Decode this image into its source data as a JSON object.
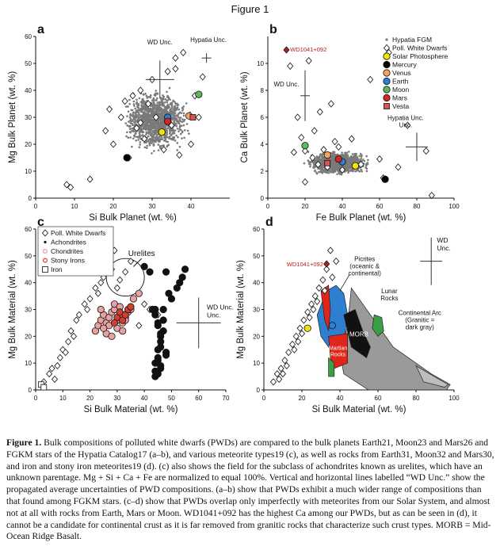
{
  "figure": {
    "title": "Figure 1",
    "caption_label": "Figure 1.",
    "caption_text": "Bulk compositions of polluted white dwarfs (PWDs) are compared to the bulk planets Earth21, Moon23 and Mars26 and FGKM stars of the Hypatia Catalog17 (a–b), and various meteorite types19 (c), as well as rocks from Earth31, Moon32 and Mars30, and iron and stony iron meteorites19 (d). (c) also shows the field for the subclass of achondrites known as urelites, which have an unknown parentage. Mg + Si + Ca + Fe are normalized to equal 100%. Vertical and horizontal lines labelled “WD Unc.” show the propagated average uncertainties of PWD compositions. (a–b) show that PWDs exhibit a much wider range of compositions than that found among FGKM stars. (c–d) show that PWDs overlap only imperfectly with meteorites from our Solar System, and almost not at all with rocks from Earth, Mars or Moon. WD1041+092 has the highest Ca among our PWDs, but as can be seen in (d), it cannot be a candidate for continental crust as it is far removed from granitic rocks that characterize such crust types. MORB = Mid-Ocean Ridge Basalt."
  },
  "chart_data": [
    {
      "panel": "a",
      "type": "scatter",
      "xlabel": "Si Bulk Planet (wt. %)",
      "ylabel": "Mg Bulk Planet (wt. %)",
      "xlim": [
        0,
        50
      ],
      "ylim": [
        0,
        60
      ],
      "xticks": [
        0,
        10,
        20,
        30,
        40
      ],
      "yticks": [
        0,
        10,
        20,
        30,
        40,
        50,
        60
      ],
      "annotations": [
        "WD Unc.",
        "Hypatia Unc."
      ],
      "cloud": {
        "name": "Hypatia FGM",
        "center": [
          31,
          29
        ],
        "spread": [
          4.5,
          6
        ],
        "color": "#7a7a7a"
      },
      "series": [
        {
          "name": "Poll. White Dwarfs",
          "marker": "diamond",
          "x": [
            8,
            9,
            14,
            18,
            19,
            20,
            22,
            24,
            25,
            26,
            27,
            28,
            29,
            30,
            31,
            33,
            34,
            35,
            36,
            37,
            38,
            40,
            41,
            42,
            43,
            23,
            27,
            36
          ],
          "y": [
            5,
            4,
            7,
            25,
            33,
            20,
            30,
            15,
            38,
            26,
            40,
            22,
            35,
            44,
            30,
            18,
            47,
            27,
            52,
            16,
            54,
            20,
            38,
            30,
            45,
            36,
            28,
            48
          ]
        },
        {
          "name": "Solar Photosphere",
          "x": [
            32.5
          ],
          "y": [
            24.5
          ],
          "color": "#f2e20c"
        },
        {
          "name": "Mercury",
          "x": [
            23.5
          ],
          "y": [
            15
          ],
          "color": "#000000"
        },
        {
          "name": "Venus",
          "x": [
            39.5
          ],
          "y": [
            30.5
          ],
          "color": "#f4a460"
        },
        {
          "name": "Earth",
          "x": [
            34
          ],
          "y": [
            30
          ],
          "color": "#2f7fd1"
        },
        {
          "name": "Moon",
          "x": [
            42
          ],
          "y": [
            38.5
          ],
          "color": "#5cb85c"
        },
        {
          "name": "Mars",
          "x": [
            34
          ],
          "y": [
            28.5
          ],
          "color": "#d62728"
        },
        {
          "name": "Vesta",
          "x": [
            40.5
          ],
          "y": [
            30
          ],
          "color": "#d9534f",
          "marker": "square"
        }
      ]
    },
    {
      "panel": "b",
      "type": "scatter",
      "xlabel": "Fe Bulk Planet (wt. %)",
      "ylabel": "Ca Bulk Planet (wt. %)",
      "xlim": [
        0,
        100
      ],
      "ylim": [
        0,
        12
      ],
      "xticks": [
        0,
        20,
        40,
        60,
        80,
        100
      ],
      "yticks": [
        0,
        2,
        4,
        6,
        8,
        10
      ],
      "annotations": [
        "WD1041+092",
        "WD Unc.",
        "Hypatia Unc."
      ],
      "legend": [
        "Hypatia FGM",
        "Poll. White Dwarfs",
        "Solar Photosphere",
        "Mercury",
        "Venus",
        "Earth",
        "Moon",
        "Mars",
        "Vesta"
      ],
      "cloud": {
        "name": "Hypatia FGM",
        "center": [
          38,
          2.6
        ],
        "spread": [
          9,
          0.45
        ],
        "color": "#7a7a7a"
      },
      "series": [
        {
          "name": "Poll. White Dwarfs",
          "marker": "diamond",
          "x": [
            12,
            14,
            16,
            18,
            20,
            22,
            25,
            28,
            30,
            32,
            34,
            36,
            38,
            40,
            45,
            50,
            55,
            60,
            62,
            65,
            70,
            75,
            85,
            88,
            24,
            27,
            20
          ],
          "y": [
            9.8,
            3.4,
            6,
            4.5,
            3.5,
            10.2,
            5,
            6.4,
            3.6,
            2.3,
            7,
            4.2,
            3.8,
            2.1,
            4.4,
            2.5,
            8.8,
            2.9,
            1.5,
            10.8,
            2.3,
            5.4,
            3.5,
            0.2,
            3,
            2.5,
            1.2
          ]
        },
        {
          "name": "WD1041+092",
          "x": [
            10
          ],
          "y": [
            11
          ],
          "color": "#b22222",
          "marker": "diamond"
        },
        {
          "name": "Solar Photosphere",
          "x": [
            47
          ],
          "y": [
            2.4
          ],
          "color": "#f2e20c"
        },
        {
          "name": "Mercury",
          "x": [
            63
          ],
          "y": [
            1.4
          ],
          "color": "#000000"
        },
        {
          "name": "Venus",
          "x": [
            32
          ],
          "y": [
            3.2
          ],
          "color": "#f4a460"
        },
        {
          "name": "Earth",
          "x": [
            40
          ],
          "y": [
            2.7
          ],
          "color": "#2f7fd1"
        },
        {
          "name": "Moon",
          "x": [
            20
          ],
          "y": [
            3.9
          ],
          "color": "#5cb85c"
        },
        {
          "name": "Mars",
          "x": [
            38
          ],
          "y": [
            2.9
          ],
          "color": "#d62728"
        },
        {
          "name": "Vesta",
          "x": [
            32
          ],
          "y": [
            2.6
          ],
          "color": "#d9534f",
          "marker": "square"
        }
      ]
    },
    {
      "panel": "c",
      "type": "scatter",
      "xlabel": "Si Bulk Material (wt. %)",
      "ylabel": "Mg Bulk Material (wt. %)",
      "xlim": [
        0,
        70
      ],
      "ylim": [
        0,
        60
      ],
      "xticks": [
        0,
        10,
        20,
        30,
        40,
        50,
        60,
        70
      ],
      "yticks": [
        0,
        10,
        20,
        30,
        40,
        50,
        60
      ],
      "annotations": [
        "Urelites",
        "WD Unc."
      ],
      "legend": [
        "Poll. White Dwarfs",
        "Achondrites",
        "Chondrites",
        "Stony Irons",
        "Iron"
      ],
      "series": [
        {
          "name": "Poll. White Dwarfs",
          "marker": "diamond",
          "x": [
            3,
            5,
            7,
            8,
            9,
            10,
            12,
            13,
            15,
            16,
            18,
            20,
            22,
            24,
            25,
            26,
            27,
            28,
            29,
            30,
            31,
            33,
            35,
            38,
            40,
            42,
            45,
            6,
            11,
            14,
            19,
            23
          ],
          "y": [
            3,
            6,
            4,
            9,
            12,
            15,
            18,
            22,
            26,
            28,
            32,
            34,
            38,
            40,
            42,
            46,
            50,
            45,
            52,
            38,
            41,
            44,
            48,
            24,
            32,
            30,
            28,
            8,
            14,
            20,
            30,
            36
          ]
        },
        {
          "name": "Achondrites",
          "color": "#111111",
          "x": [
            44,
            45,
            45,
            46,
            46,
            47,
            45,
            44,
            47,
            46,
            45,
            44,
            48,
            46,
            45,
            47,
            44,
            46,
            45,
            48,
            50,
            52,
            54,
            55,
            53,
            49,
            48,
            43,
            42,
            40,
            44,
            46
          ],
          "y": [
            10,
            12,
            15,
            18,
            20,
            22,
            25,
            28,
            30,
            8,
            6,
            5,
            14,
            16,
            24,
            26,
            30,
            9,
            11,
            13,
            34,
            38,
            42,
            45,
            40,
            36,
            44,
            30,
            44,
            46,
            7,
            21
          ]
        },
        {
          "name": "Chondrites",
          "color": "#e8a0a0",
          "x": [
            22,
            23,
            24,
            25,
            26,
            27,
            28,
            29,
            30,
            31,
            32,
            33,
            34,
            35,
            26,
            28,
            30,
            32,
            24,
            29,
            31,
            27,
            25,
            33,
            36,
            38
          ],
          "y": [
            22,
            24,
            26,
            28,
            25,
            27,
            29,
            30,
            26,
            28,
            25,
            27,
            29,
            30,
            21,
            20,
            23,
            22,
            30,
            32,
            31,
            24,
            23,
            26,
            34,
            36
          ]
        },
        {
          "name": "Stony Irons",
          "color": "#d04030",
          "x": [
            30,
            31,
            32,
            33,
            29,
            34,
            35
          ],
          "y": [
            27,
            29,
            26,
            28,
            25,
            30,
            31
          ]
        },
        {
          "name": "Iron",
          "marker": "square",
          "x": [
            2,
            3
          ],
          "y": [
            2,
            1
          ]
        }
      ]
    },
    {
      "panel": "d",
      "type": "scatter",
      "xlabel": "Si Bulk Material (wt. %)",
      "ylabel": "Mg Bulk Material (wt. %)",
      "xlim": [
        0,
        100
      ],
      "ylim": [
        0,
        60
      ],
      "xticks": [
        0,
        20,
        40,
        60,
        80,
        100
      ],
      "yticks": [
        0,
        10,
        20,
        30,
        40,
        50,
        60
      ],
      "annotations": [
        "WD1041+092",
        "Picrites (oceanic & continental)",
        "Lunar Rocks",
        "Continental Arc (Granitic = dark gray)",
        "Martian Rocks",
        "MORB",
        "WD Unc."
      ],
      "series": [
        {
          "name": "Poll. White Dwarfs",
          "marker": "diamond",
          "x": [
            5,
            7,
            9,
            11,
            13,
            15,
            17,
            19,
            21,
            23,
            25,
            27,
            29,
            31,
            33,
            35,
            8,
            12,
            16,
            20,
            24,
            28,
            32,
            36,
            38,
            10,
            18,
            26
          ],
          "y": [
            3,
            6,
            8,
            11,
            14,
            17,
            20,
            23,
            26,
            29,
            32,
            35,
            38,
            41,
            45,
            52,
            4,
            9,
            15,
            21,
            27,
            33,
            37,
            42,
            48,
            6,
            18,
            30
          ]
        },
        {
          "name": "WD1041+092",
          "x": [
            33
          ],
          "y": [
            47
          ],
          "color": "#b22222",
          "marker": "diamond"
        },
        {
          "name": "Earth",
          "x": [
            36
          ],
          "y": [
            24
          ],
          "color": "#2f7fd1"
        },
        {
          "name": "Solar Photosphere",
          "x": [
            23
          ],
          "y": [
            23
          ],
          "color": "#f2e20c"
        }
      ]
    }
  ]
}
